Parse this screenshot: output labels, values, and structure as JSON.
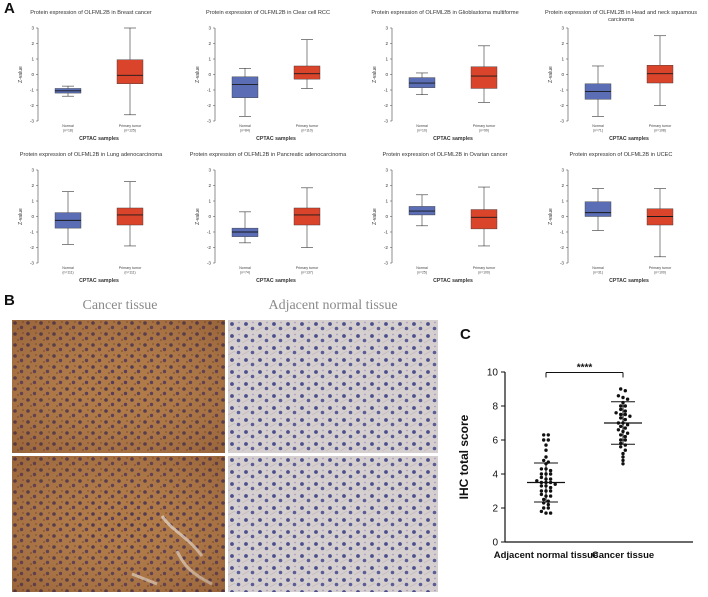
{
  "panels": {
    "a": "A",
    "b": "B",
    "c": "C"
  },
  "colors": {
    "normal": "#5b6eb5",
    "tumor": "#d9442b",
    "median": "#1a1a1a",
    "whisker": "#333333"
  },
  "boxplots": {
    "y_label": "Z-value",
    "x_label": "CPTAC samples",
    "items": [
      {
        "title": "Protein expression of OLFML2B in Breast cancer",
        "ylim": [
          -3,
          3
        ],
        "ticks": [
          3,
          2,
          1,
          0,
          -1,
          -2,
          -3
        ],
        "groups": [
          {
            "label": "Normal",
            "n": "(n=18)",
            "min": -1.4,
            "q1": -1.2,
            "median": -1.05,
            "q3": -0.9,
            "max": -0.75
          },
          {
            "label": "Primary tumor",
            "n": "(n=125)",
            "min": -2.6,
            "q1": -0.6,
            "median": -0.05,
            "q3": 0.95,
            "max": 3.0
          }
        ]
      },
      {
        "title": "Protein expression of OLFML2B in Clear cell RCC",
        "ylim": [
          -3,
          3
        ],
        "ticks": [
          3,
          2,
          1,
          0,
          -1,
          -2,
          -3
        ],
        "groups": [
          {
            "label": "Normal",
            "n": "(n=84)",
            "min": -2.7,
            "q1": -1.5,
            "median": -0.65,
            "q3": -0.15,
            "max": 0.4
          },
          {
            "label": "Primary tumor",
            "n": "(n=110)",
            "min": -0.9,
            "q1": -0.3,
            "median": 0.05,
            "q3": 0.55,
            "max": 2.25
          }
        ]
      },
      {
        "title": "Protein expression of OLFML2B in Glioblastoma multiforme",
        "ylim": [
          -3,
          3
        ],
        "ticks": [
          3,
          2,
          1,
          0,
          -1,
          -2,
          -3
        ],
        "groups": [
          {
            "label": "Normal",
            "n": "(n=10)",
            "min": -1.3,
            "q1": -0.85,
            "median": -0.55,
            "q3": -0.2,
            "max": 0.1
          },
          {
            "label": "Primary tumor",
            "n": "(n=99)",
            "min": -1.8,
            "q1": -0.9,
            "median": -0.1,
            "q3": 0.5,
            "max": 1.85
          }
        ]
      },
      {
        "title": "Protein expression of OLFML2B in Head and neck squamous carcinoma",
        "ylim": [
          -3,
          3
        ],
        "ticks": [
          3,
          2,
          1,
          0,
          -1,
          -2,
          -3
        ],
        "groups": [
          {
            "label": "Normal",
            "n": "(n=71)",
            "min": -2.7,
            "q1": -1.6,
            "median": -1.1,
            "q3": -0.6,
            "max": 0.55
          },
          {
            "label": "Primary tumor",
            "n": "(n=108)",
            "min": -2.0,
            "q1": -0.55,
            "median": 0.05,
            "q3": 0.6,
            "max": 2.5
          }
        ]
      },
      {
        "title": "Protein expression of OLFML2B in Lung adenocarcinoma",
        "ylim": [
          -3,
          3
        ],
        "ticks": [
          3,
          2,
          1,
          0,
          -1,
          -2,
          -3
        ],
        "groups": [
          {
            "label": "Normal",
            "n": "(n=111)",
            "min": -1.8,
            "q1": -0.75,
            "median": -0.25,
            "q3": 0.25,
            "max": 1.6
          },
          {
            "label": "Primary tumor",
            "n": "(n=111)",
            "min": -1.9,
            "q1": -0.55,
            "median": 0.1,
            "q3": 0.55,
            "max": 2.25
          }
        ]
      },
      {
        "title": "Protein expression of OLFML2B in Pancreatic adenocarcinoma",
        "ylim": [
          -3,
          3
        ],
        "ticks": [
          3,
          2,
          1,
          0,
          -1,
          -2,
          -3
        ],
        "groups": [
          {
            "label": "Normal",
            "n": "(n=74)",
            "min": -1.7,
            "q1": -1.3,
            "median": -1.0,
            "q3": -0.75,
            "max": 0.3
          },
          {
            "label": "Primary tumor",
            "n": "(n=137)",
            "min": -2.0,
            "q1": -0.55,
            "median": 0.1,
            "q3": 0.55,
            "max": 1.85
          }
        ]
      },
      {
        "title": "Protein expression of OLFML2B in Ovarian cancer",
        "ylim": [
          -3,
          3
        ],
        "ticks": [
          3,
          2,
          1,
          0,
          -1,
          -2,
          -3
        ],
        "groups": [
          {
            "label": "Normal",
            "n": "(n=25)",
            "min": -0.6,
            "q1": 0.1,
            "median": 0.35,
            "q3": 0.65,
            "max": 1.4
          },
          {
            "label": "Primary tumor",
            "n": "(n=100)",
            "min": -1.9,
            "q1": -0.8,
            "median": -0.05,
            "q3": 0.45,
            "max": 1.9
          }
        ]
      },
      {
        "title": "Protein expression of OLFML2B in UCEC",
        "ylim": [
          -3,
          3
        ],
        "ticks": [
          3,
          2,
          1,
          0,
          -1,
          -2,
          -3
        ],
        "groups": [
          {
            "label": "Normal",
            "n": "(n=31)",
            "min": -0.9,
            "q1": 0.0,
            "median": 0.25,
            "q3": 0.95,
            "max": 1.8
          },
          {
            "label": "Primary tumor",
            "n": "(n=100)",
            "min": -2.6,
            "q1": -0.55,
            "median": 0.0,
            "q3": 0.5,
            "max": 1.8
          }
        ]
      }
    ]
  },
  "ihc": {
    "cancer_header": "Cancer tissue",
    "normal_header": "Adjacent normal tissue"
  },
  "chart_data": {
    "type": "scatter",
    "ylabel": "IHC total score",
    "ylim": [
      0,
      10
    ],
    "yticks": [
      0,
      2,
      4,
      6,
      8,
      10
    ],
    "categories": [
      "Adjacent normal tissue",
      "Cancer tissue"
    ],
    "significance": "****",
    "series": [
      {
        "name": "Adjacent normal tissue",
        "mean": 3.5,
        "sd": 1.15,
        "values": [
          6.3,
          6.3,
          6.0,
          6.0,
          5.7,
          5.4,
          5.0,
          4.8,
          4.7,
          4.6,
          4.3,
          4.3,
          4.2,
          4.0,
          4.0,
          4.0,
          3.8,
          3.7,
          3.7,
          3.6,
          3.5,
          3.5,
          3.5,
          3.4,
          3.3,
          3.3,
          3.2,
          3.0,
          3.0,
          3.0,
          2.8,
          2.7,
          2.7,
          2.5,
          2.4,
          2.3,
          2.2,
          2.0,
          2.0,
          1.8,
          1.7,
          1.7
        ]
      },
      {
        "name": "Cancer tissue",
        "mean": 7.0,
        "sd": 1.25,
        "values": [
          9.0,
          8.9,
          8.6,
          8.5,
          8.4,
          8.2,
          8.0,
          8.0,
          7.8,
          7.7,
          7.6,
          7.5,
          7.5,
          7.4,
          7.3,
          7.2,
          7.0,
          7.0,
          6.9,
          6.8,
          6.7,
          6.6,
          6.5,
          6.4,
          6.3,
          6.2,
          6.0,
          6.0,
          5.8,
          5.7,
          5.6,
          5.4,
          5.2,
          5.0,
          4.8,
          4.6
        ]
      }
    ]
  }
}
